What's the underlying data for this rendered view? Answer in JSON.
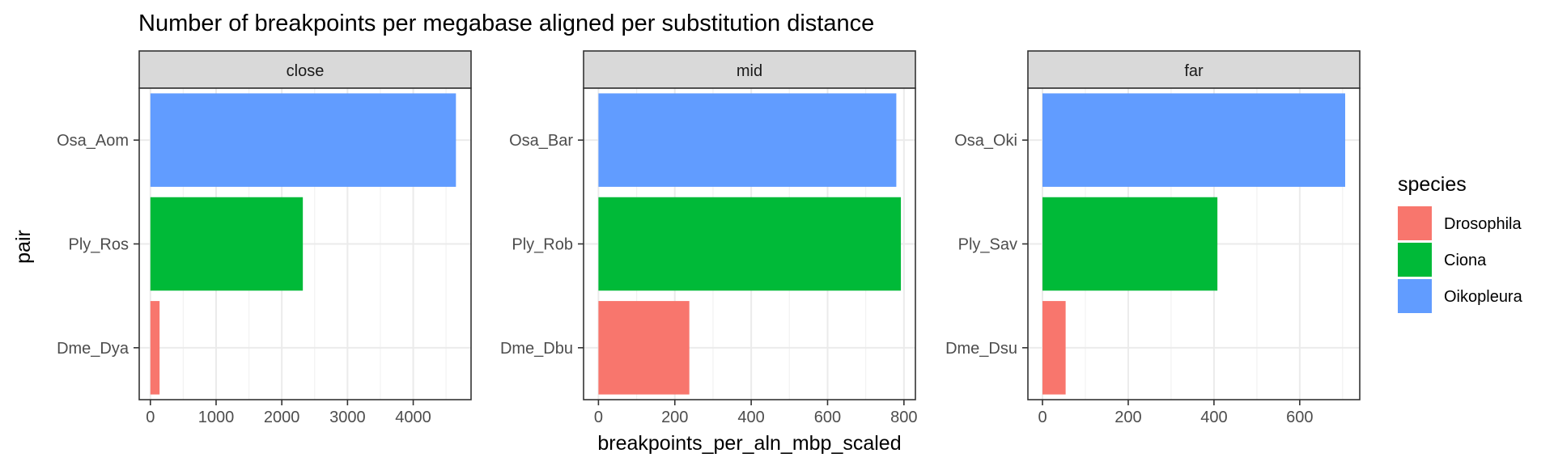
{
  "chart_data": {
    "type": "bar",
    "orientation": "horizontal",
    "title": "Number of breakpoints per megabase aligned per substitution distance",
    "xlabel": "breakpoints_per_aln_mbp_scaled",
    "ylabel": "pair",
    "grid": true,
    "legend": {
      "title": "species",
      "position": "right",
      "entries": [
        {
          "name": "Drosophila",
          "color": "#F8766D"
        },
        {
          "name": "Ciona",
          "color": "#00BA38"
        },
        {
          "name": "Oikopleura",
          "color": "#619CFF"
        }
      ]
    },
    "panels": [
      {
        "strip": "close",
        "xlim": [
          -170,
          4880
        ],
        "xticks": [
          0,
          1000,
          2000,
          3000,
          4000
        ],
        "xtick_labels": [
          "0",
          "1000",
          "2000",
          "3000",
          "4000"
        ],
        "bars": [
          {
            "pair": "Osa_Aom",
            "species": "Oikopleura",
            "value": 4650
          },
          {
            "pair": "Ply_Ros",
            "species": "Ciona",
            "value": 2320
          },
          {
            "pair": "Dme_Dya",
            "species": "Drosophila",
            "value": 140
          }
        ]
      },
      {
        "strip": "mid",
        "xlim": [
          -39,
          830
        ],
        "xticks": [
          0,
          200,
          400,
          600,
          800
        ],
        "xtick_labels": [
          "0",
          "200",
          "400",
          "600",
          "800"
        ],
        "bars": [
          {
            "pair": "Osa_Bar",
            "species": "Oikopleura",
            "value": 780
          },
          {
            "pair": "Ply_Rob",
            "species": "Ciona",
            "value": 792
          },
          {
            "pair": "Dme_Dbu",
            "species": "Drosophila",
            "value": 238
          }
        ]
      },
      {
        "strip": "far",
        "xlim": [
          -34,
          740
        ],
        "xticks": [
          0,
          200,
          400,
          600
        ],
        "xtick_labels": [
          "0",
          "200",
          "400",
          "600"
        ],
        "bars": [
          {
            "pair": "Osa_Oki",
            "species": "Oikopleura",
            "value": 706
          },
          {
            "pair": "Ply_Sav",
            "species": "Ciona",
            "value": 408
          },
          {
            "pair": "Dme_Dsu",
            "species": "Drosophila",
            "value": 54
          }
        ]
      }
    ]
  }
}
